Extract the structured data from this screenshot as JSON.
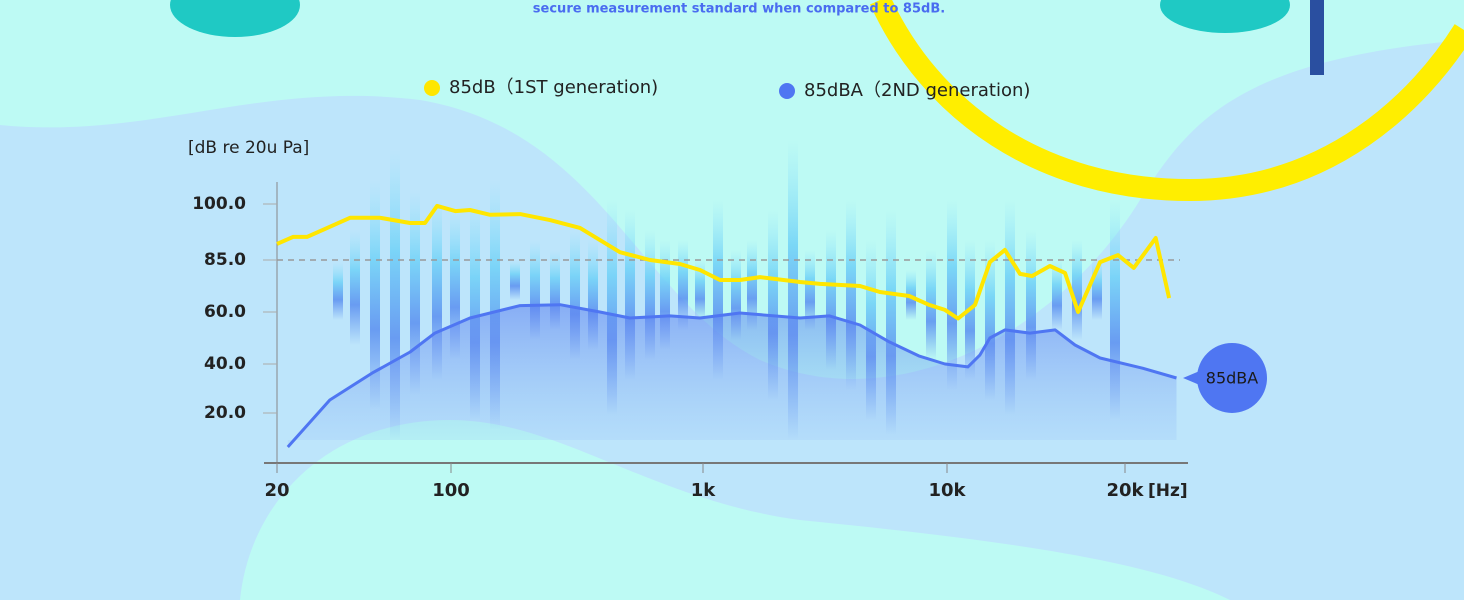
{
  "chart_data": {
    "type": "line",
    "header_text": "secure measurement standard when compared to 85dB.",
    "y_label": "[dB re 20u Pa]",
    "x_label": "[Hz]",
    "x_scale": "log",
    "xlim": [
      20,
      25000
    ],
    "xticks": [
      20,
      100,
      {
        "value": 1000,
        "label": "1k"
      },
      {
        "value": 10000,
        "label": "10k"
      },
      {
        "value": 20000,
        "label": "20k"
      }
    ],
    "ylim": [
      0,
      105
    ],
    "yticks": [
      {
        "value": 20,
        "label": "20.0"
      },
      {
        "value": 40,
        "label": "40.0"
      },
      {
        "value": 60,
        "label": "60.0"
      },
      {
        "value": 85,
        "label": "85.0"
      },
      {
        "value": 100,
        "label": "100.0"
      }
    ],
    "reference_line": 85,
    "end_label": "85dBA",
    "series": [
      {
        "name": "85dB（1ST generation)",
        "color": "#ffe600",
        "x": [
          20,
          23.2,
          26.4,
          39.3,
          51.9,
          68.5,
          78.6,
          87.9,
          104,
          119,
          143,
          188,
          247,
          325,
          468,
          616,
          810,
          973,
          1174,
          1418,
          1712,
          2500,
          3020,
          4400,
          5310,
          7000,
          8450,
          9810,
          10440,
          11150,
          11820,
          12530,
          13290,
          13930,
          14930,
          15830,
          16660,
          18150,
          19460,
          20630,
          22300,
          23380
        ],
        "values": [
          89.3,
          91.2,
          91.2,
          96.3,
          96.3,
          94.9,
          94.9,
          99.5,
          98.1,
          98.4,
          97.1,
          97.3,
          95.7,
          93.6,
          87.1,
          85,
          83.1,
          80.2,
          75.4,
          75.4,
          76.8,
          74.4,
          73.5,
          72.5,
          69.6,
          67.7,
          63.4,
          61,
          57.5,
          63.4,
          84,
          87.7,
          78.3,
          77.3,
          82.1,
          78.8,
          60,
          84,
          86.3,
          81.2,
          90.9,
          66.7
        ]
      },
      {
        "name": "85dBA（2ND generation)",
        "color": "#4f76f2",
        "x": [
          22.1,
          32.6,
          48.2,
          68.5,
          86.2,
          119,
          188,
          271,
          390,
          513,
          738,
          973,
          1418,
          2500,
          3300,
          4400,
          5800,
          7660,
          9810,
          10850,
          11370,
          11820,
          12530,
          13810,
          15240,
          16460,
          18150,
          21200,
          24000
        ],
        "values": [
          6.4,
          25.3,
          36.3,
          44.6,
          51.9,
          57.7,
          63.1,
          63.5,
          60,
          57.7,
          58.5,
          57.7,
          59.6,
          57.7,
          58.5,
          55,
          48.5,
          43.1,
          40,
          38.8,
          43.5,
          50,
          53.1,
          51.9,
          53.1,
          47.3,
          42.3,
          38.4,
          34.3
        ]
      }
    ]
  }
}
